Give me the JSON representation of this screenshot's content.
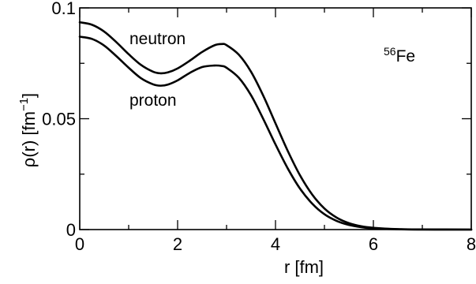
{
  "chart_data": {
    "type": "line",
    "title": "",
    "xlabel": "r [fm]",
    "ylabel_main": "ρ(r) [fm",
    "ylabel_sup": "−1",
    "ylabel_close": "]",
    "xlim": [
      0,
      8
    ],
    "ylim": [
      0,
      0.1
    ],
    "x_ticks": [
      0,
      2,
      4,
      6,
      8
    ],
    "x_tick_labels": [
      "0",
      "2",
      "4",
      "6",
      "8"
    ],
    "y_ticks": [
      0,
      0.05,
      0.1
    ],
    "y_tick_labels": [
      "0",
      "0.05",
      "0.1"
    ],
    "grid": false,
    "annotation": {
      "mass_number": "56",
      "element": "Fe"
    },
    "series": [
      {
        "name": "neutron",
        "x": [
          0,
          0.25,
          0.5,
          0.75,
          1.0,
          1.25,
          1.5,
          1.65,
          1.8,
          2.0,
          2.25,
          2.5,
          2.75,
          2.9,
          3.0,
          3.25,
          3.5,
          3.75,
          4.0,
          4.25,
          4.5,
          4.75,
          5.0,
          5.25,
          5.5,
          5.75,
          6.0,
          6.5,
          7.0,
          7.5,
          8.0
        ],
        "y": [
          0.0935,
          0.0924,
          0.0893,
          0.0845,
          0.0791,
          0.0743,
          0.0712,
          0.0705,
          0.0709,
          0.0727,
          0.0762,
          0.0801,
          0.0831,
          0.0837,
          0.0832,
          0.0789,
          0.0712,
          0.0604,
          0.0479,
          0.0355,
          0.0245,
          0.0158,
          0.0095,
          0.0054,
          0.0029,
          0.0015,
          0.0008,
          0.0002,
          5e-05,
          1e-05,
          0.0
        ]
      },
      {
        "name": "proton",
        "x": [
          0,
          0.25,
          0.5,
          0.75,
          1.0,
          1.25,
          1.5,
          1.65,
          1.8,
          2.0,
          2.25,
          2.5,
          2.75,
          2.9,
          3.0,
          3.25,
          3.5,
          3.75,
          4.0,
          4.25,
          4.5,
          4.75,
          5.0,
          5.25,
          5.5,
          5.75,
          6.0,
          6.5,
          7.0,
          7.5,
          8.0
        ],
        "y": [
          0.087,
          0.086,
          0.083,
          0.0782,
          0.073,
          0.0683,
          0.0655,
          0.0649,
          0.0654,
          0.0673,
          0.0707,
          0.0733,
          0.074,
          0.0738,
          0.073,
          0.0685,
          0.0606,
          0.0499,
          0.0384,
          0.0276,
          0.0185,
          0.0117,
          0.0069,
          0.0039,
          0.0021,
          0.0011,
          0.0005,
          0.00013,
          3e-05,
          1e-05,
          0.0
        ]
      }
    ]
  }
}
